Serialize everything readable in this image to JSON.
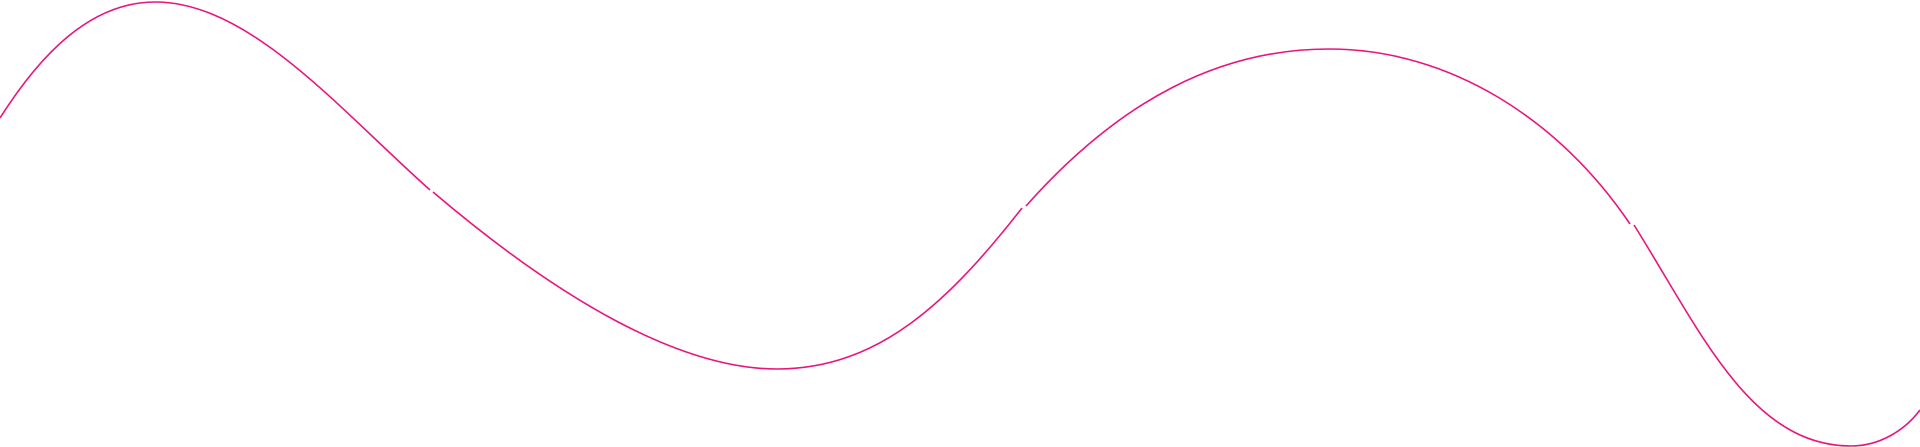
{
  "decoration": {
    "type": "wavy-line",
    "stroke_color": "#e8157e",
    "background_color": "#ffffff"
  }
}
